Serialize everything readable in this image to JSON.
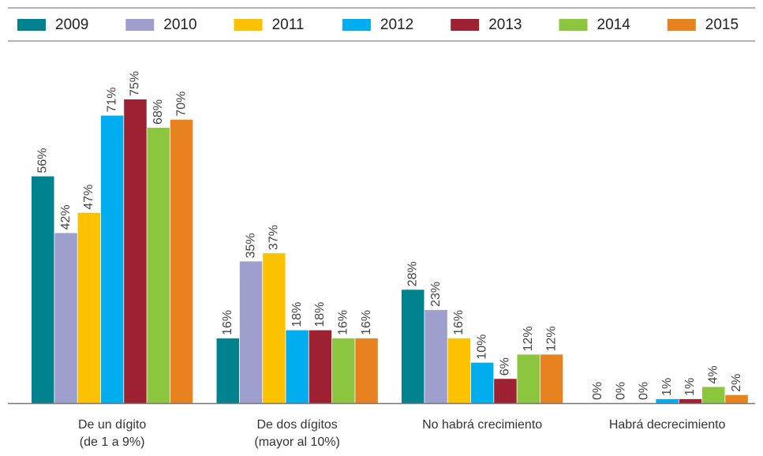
{
  "chart_data": {
    "type": "bar",
    "categories": [
      "De un dígito\n(de 1 a 9%)",
      "De dos dígitos\n(mayor al 10%)",
      "No habrá crecimiento",
      "Habrá decrecimiento"
    ],
    "series": [
      {
        "name": "2009",
        "color": "#00838f",
        "values": [
          56,
          16,
          28,
          0
        ],
        "value_labels": [
          "56%",
          "16%",
          "28%",
          "0%"
        ]
      },
      {
        "name": "2010",
        "color": "#9e9fcc",
        "values": [
          42,
          35,
          23,
          0
        ],
        "value_labels": [
          "42%",
          "35%",
          "23%",
          "0%"
        ]
      },
      {
        "name": "2011",
        "color": "#fcc200",
        "values": [
          47,
          37,
          16,
          0
        ],
        "value_labels": [
          "47%",
          "37%",
          "16%",
          "0%"
        ]
      },
      {
        "name": "2012",
        "color": "#00adef",
        "values": [
          71,
          18,
          10,
          1
        ],
        "value_labels": [
          "71%",
          "18%",
          "10%",
          "1%"
        ]
      },
      {
        "name": "2013",
        "color": "#9e2132",
        "values": [
          75,
          18,
          6,
          1
        ],
        "value_labels": [
          "75%",
          "18%",
          "6%",
          "1%"
        ]
      },
      {
        "name": "2014",
        "color": "#8cc63f",
        "values": [
          68,
          16,
          12,
          4
        ],
        "value_labels": [
          "68%",
          "16%",
          "12%",
          "4%"
        ]
      },
      {
        "name": "2015",
        "color": "#e8821e",
        "values": [
          70,
          16,
          12,
          2
        ],
        "value_labels": [
          "70%",
          "16%",
          "12%",
          "2%"
        ]
      }
    ],
    "legend": "top"
  }
}
